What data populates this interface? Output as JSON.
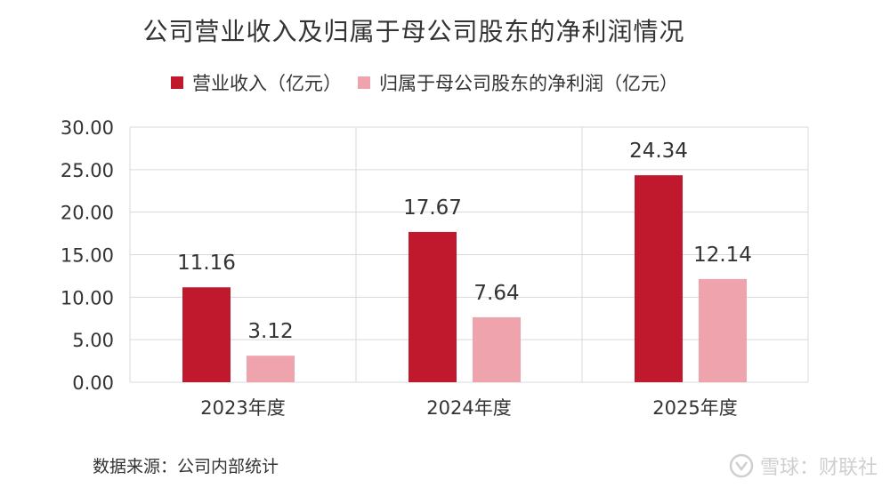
{
  "chart_data": {
    "type": "bar",
    "title": "公司营业收入及归属于母公司股东的净利润情况",
    "categories": [
      "2023年度",
      "2024年度",
      "2025年度"
    ],
    "series": [
      {
        "name": "营业收入（亿元）",
        "values": [
          11.16,
          17.67,
          24.34
        ],
        "color": "#c0192e"
      },
      {
        "name": "归属于母公司股东的净利润（亿元）",
        "values": [
          3.12,
          7.64,
          12.14
        ],
        "color": "#efa4ad"
      }
    ],
    "value_labels": [
      [
        "11.16",
        "17.67",
        "24.34"
      ],
      [
        "3.12",
        "7.64",
        "12.14"
      ]
    ],
    "y_ticks": [
      "0.00",
      "5.00",
      "10.00",
      "15.00",
      "20.00",
      "25.00",
      "30.00"
    ],
    "ylim": [
      0,
      30
    ],
    "legend_position": "top",
    "grid": true
  },
  "source_note": "数据来源：公司内部统计",
  "watermark": "雪球：财联社",
  "colors": {
    "grid": "#d9d9d9",
    "text": "#333333",
    "watermark": "#cfcfcf"
  }
}
